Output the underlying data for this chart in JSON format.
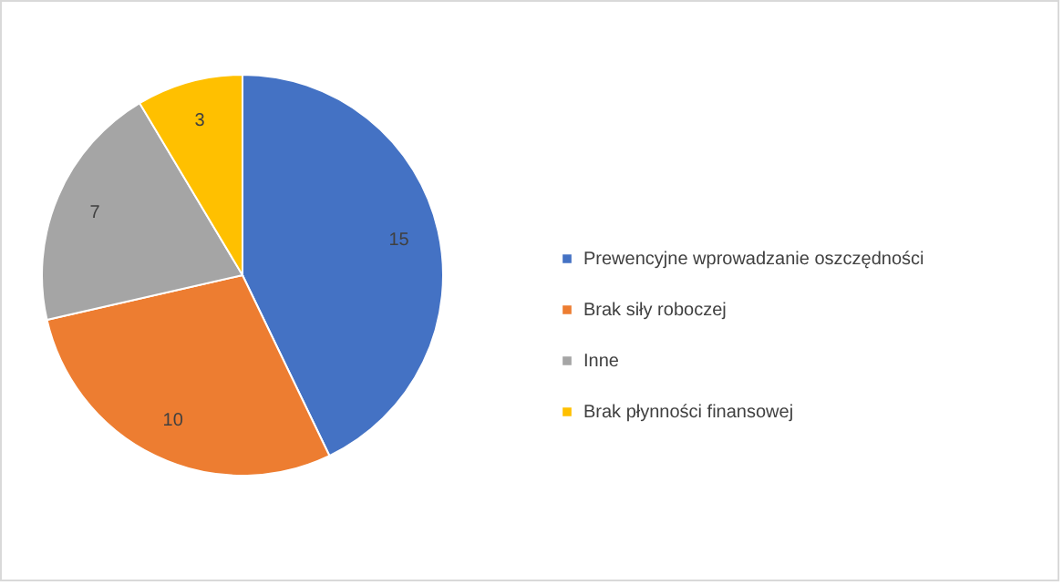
{
  "chart_data": {
    "type": "pie",
    "categories": [
      "Prewencyjne wprowadzanie oszczędności",
      "Brak siły roboczej",
      "Inne",
      "Brak płynności finansowej"
    ],
    "values": [
      15,
      10,
      7,
      3
    ],
    "colors": [
      "#4472c4",
      "#ed7d31",
      "#a5a5a5",
      "#ffc000"
    ],
    "data_labels": true,
    "legend": "right"
  }
}
